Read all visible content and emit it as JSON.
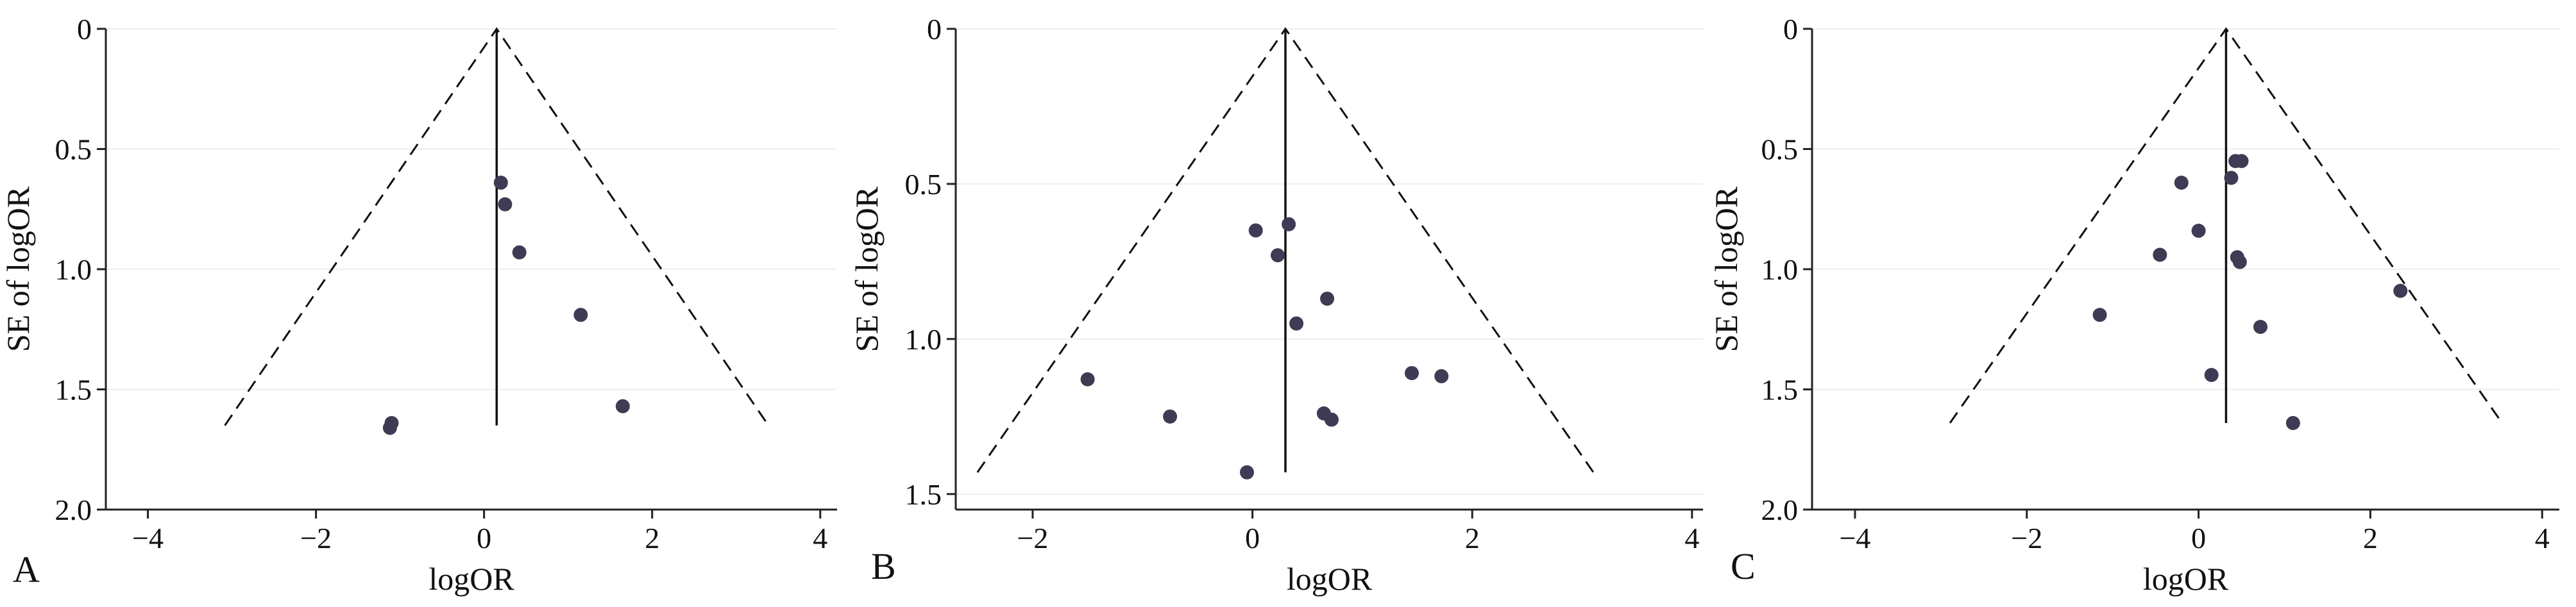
{
  "chart_data": [
    {
      "type": "scatter",
      "panel_label": "A",
      "xlabel": "logOR",
      "ylabel": "SE of logOR",
      "xlim": [
        -4.5,
        4.2
      ],
      "ylim": [
        0,
        2.0
      ],
      "y_reversed": true,
      "xticks": [
        -4,
        -2,
        0,
        2,
        4
      ],
      "yticks": [
        0,
        0.5,
        1.0,
        1.5,
        2.0
      ],
      "xtick_labels": [
        "−4",
        "−2",
        "0",
        "2",
        "4"
      ],
      "ytick_labels": [
        "0",
        "0.5",
        "1.0",
        "1.5",
        "2.0"
      ],
      "grid": "horizontal",
      "pooled_estimate": 0.15,
      "funnel_se_max": 1.65,
      "points": [
        {
          "x": 0.2,
          "y": 0.64
        },
        {
          "x": 0.25,
          "y": 0.73
        },
        {
          "x": 0.42,
          "y": 0.93
        },
        {
          "x": 1.15,
          "y": 1.19
        },
        {
          "x": 1.65,
          "y": 1.57
        },
        {
          "x": -1.1,
          "y": 1.64
        },
        {
          "x": -1.12,
          "y": 1.66
        }
      ]
    },
    {
      "type": "scatter",
      "panel_label": "B",
      "xlabel": "logOR",
      "ylabel": "SE of logOR",
      "xlim": [
        -2.7,
        4.1
      ],
      "ylim": [
        0,
        1.55
      ],
      "y_reversed": true,
      "xticks": [
        -2,
        0,
        2,
        4
      ],
      "yticks": [
        0,
        0.5,
        1.0,
        1.5
      ],
      "xtick_labels": [
        "−2",
        "0",
        "2",
        "4"
      ],
      "ytick_labels": [
        "0",
        "0.5",
        "1.0",
        "1.5"
      ],
      "grid": "horizontal",
      "pooled_estimate": 0.3,
      "funnel_se_max": 1.43,
      "points": [
        {
          "x": 0.33,
          "y": 0.63
        },
        {
          "x": 0.03,
          "y": 0.65
        },
        {
          "x": 0.23,
          "y": 0.73
        },
        {
          "x": 0.68,
          "y": 0.87
        },
        {
          "x": 0.4,
          "y": 0.95
        },
        {
          "x": 1.45,
          "y": 1.11
        },
        {
          "x": 1.72,
          "y": 1.12
        },
        {
          "x": -1.5,
          "y": 1.13
        },
        {
          "x": 0.65,
          "y": 1.24
        },
        {
          "x": 0.72,
          "y": 1.26
        },
        {
          "x": -0.75,
          "y": 1.25
        },
        {
          "x": -0.05,
          "y": 1.43
        }
      ]
    },
    {
      "type": "scatter",
      "panel_label": "C",
      "xlabel": "logOR",
      "ylabel": "SE of logOR",
      "xlim": [
        -4.5,
        4.2
      ],
      "ylim": [
        0,
        2.0
      ],
      "y_reversed": true,
      "xticks": [
        -4,
        -2,
        0,
        2,
        4
      ],
      "yticks": [
        0,
        0.5,
        1.0,
        1.5,
        2.0
      ],
      "xtick_labels": [
        "−4",
        "−2",
        "0",
        "2",
        "4"
      ],
      "ytick_labels": [
        "0",
        "0.5",
        "1.0",
        "1.5",
        "2.0"
      ],
      "grid": "horizontal",
      "pooled_estimate": 0.32,
      "funnel_se_max": 1.64,
      "points": [
        {
          "x": 0.43,
          "y": 0.55
        },
        {
          "x": 0.5,
          "y": 0.55
        },
        {
          "x": 0.38,
          "y": 0.62
        },
        {
          "x": -0.2,
          "y": 0.64
        },
        {
          "x": 0.0,
          "y": 0.84
        },
        {
          "x": -0.45,
          "y": 0.94
        },
        {
          "x": 0.45,
          "y": 0.95
        },
        {
          "x": 0.48,
          "y": 0.97
        },
        {
          "x": 2.35,
          "y": 1.09
        },
        {
          "x": -1.15,
          "y": 1.19
        },
        {
          "x": 0.72,
          "y": 1.24
        },
        {
          "x": 0.15,
          "y": 1.44
        },
        {
          "x": 1.1,
          "y": 1.64
        }
      ]
    }
  ]
}
